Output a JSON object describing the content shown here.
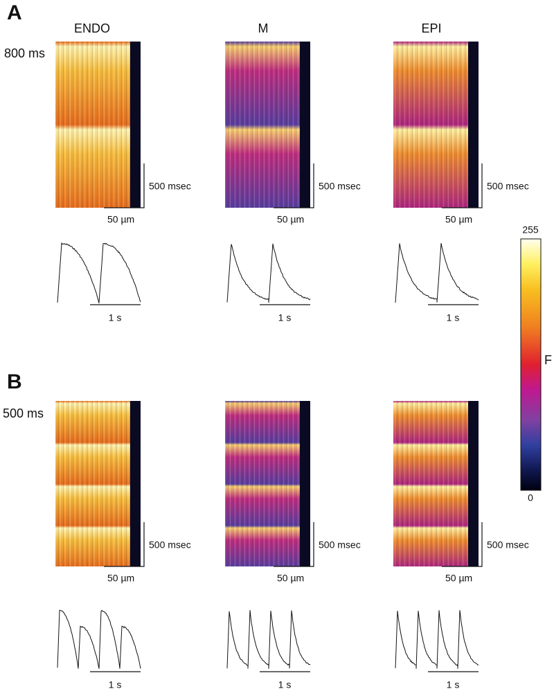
{
  "panels": [
    {
      "label": "A",
      "condition": "800 ms"
    },
    {
      "label": "B",
      "condition": "500 ms"
    }
  ],
  "columns": [
    "ENDO",
    "M",
    "EPI"
  ],
  "scale_bars": {
    "time": "500 msec",
    "length": "50 µm",
    "trace_time": "1 s"
  },
  "colorbar": {
    "max": 255,
    "min": 0,
    "label": "F"
  }
}
